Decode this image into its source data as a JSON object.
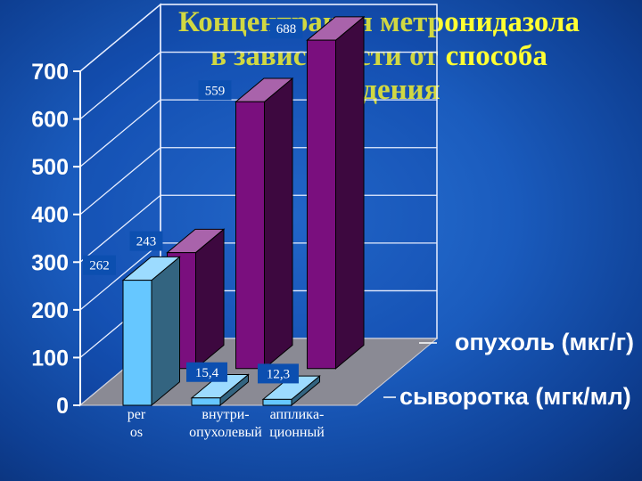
{
  "title_lines": [
    "Концентрация метронидазола",
    "в зависимости от способа",
    "введения"
  ],
  "chart_data": {
    "type": "bar",
    "view": "3d",
    "categories": [
      [
        "per",
        "os"
      ],
      [
        "внутри-",
        "опухолевый"
      ],
      [
        "аппликa-",
        "ционный"
      ]
    ],
    "series": [
      {
        "name": "опухоль (мкг/г)",
        "values": [
          243,
          559,
          688
        ],
        "labels": [
          "243",
          "559",
          "688"
        ],
        "color": "#7a0f7e"
      },
      {
        "name": "сыворотка (мгк/мл)",
        "values": [
          262,
          15.4,
          12.3
        ],
        "labels": [
          "262",
          "15,4",
          "12,3"
        ],
        "color": "#66c7ff"
      }
    ],
    "yticks": [
      0,
      100,
      200,
      300,
      400,
      500,
      600,
      700
    ],
    "ylim": [
      0,
      700
    ],
    "grid": true,
    "legend": "right"
  }
}
